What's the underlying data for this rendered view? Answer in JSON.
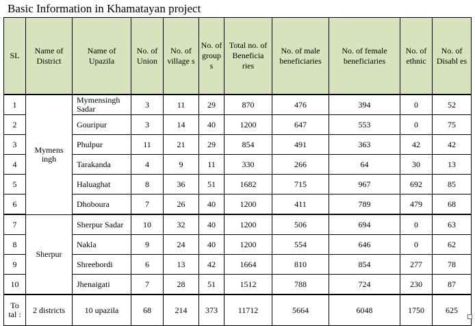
{
  "title": "Basic Information in Khamatayan project",
  "headers": [
    "SL",
    "Name of District",
    "Name of Upazila",
    "No. of Union",
    "No. of village s",
    "No. of group s",
    "Total no. of Beneficia ries",
    "No. of male beneficiaries",
    "No. of female beneficiaries",
    "No. of ethnic",
    "No. of Disabl es"
  ],
  "districts": [
    "Mymens ingh",
    "Sherpur"
  ],
  "rows": [
    {
      "sl": "1",
      "upazila": "Mymensingh Sadar",
      "union": "3",
      "villages": "11",
      "groups": "29",
      "total": "870",
      "male": "476",
      "female": "394",
      "ethnic": "0",
      "disabled": "52"
    },
    {
      "sl": "2",
      "upazila": "Gouripur",
      "union": "3",
      "villages": "14",
      "groups": "40",
      "total": "1200",
      "male": "647",
      "female": "553",
      "ethnic": "0",
      "disabled": "75"
    },
    {
      "sl": "3",
      "upazila": "Phulpur",
      "union": "11",
      "villages": "21",
      "groups": "29",
      "total": "854",
      "male": "491",
      "female": "363",
      "ethnic": "42",
      "disabled": "42"
    },
    {
      "sl": "4",
      "upazila": "Tarakanda",
      "union": "4",
      "villages": "9",
      "groups": "11",
      "total": "330",
      "male": "266",
      "female": "64",
      "ethnic": "30",
      "disabled": "13"
    },
    {
      "sl": "5",
      "upazila": "Haluaghat",
      "union": "8",
      "villages": "36",
      "groups": "51",
      "total": "1682",
      "male": "715",
      "female": "967",
      "ethnic": "692",
      "disabled": "85"
    },
    {
      "sl": "6",
      "upazila": "Dhoboura",
      "union": "7",
      "villages": "26",
      "groups": "40",
      "total": "1200",
      "male": "411",
      "female": "789",
      "ethnic": "479",
      "disabled": "68"
    },
    {
      "sl": "7",
      "upazila": "Sherpur Sadar",
      "union": "10",
      "villages": "32",
      "groups": "40",
      "total": "1200",
      "male": "506",
      "female": "694",
      "ethnic": "0",
      "disabled": "63"
    },
    {
      "sl": "8",
      "upazila": "Nakla",
      "union": "9",
      "villages": "24",
      "groups": "40",
      "total": "1200",
      "male": "554",
      "female": "646",
      "ethnic": "0",
      "disabled": "62"
    },
    {
      "sl": "9",
      "upazila": "Shreebordi",
      "union": "6",
      "villages": "13",
      "groups": "42",
      "total": "1664",
      "male": "810",
      "female": "854",
      "ethnic": "277",
      "disabled": "78"
    },
    {
      "sl": "10",
      "upazila": "Jhenaigati",
      "union": "7",
      "villages": "28",
      "groups": "51",
      "total": "1512",
      "male": "788",
      "female": "724",
      "ethnic": "230",
      "disabled": "87"
    }
  ],
  "total": {
    "sl": "To tal :",
    "district": "2 districts",
    "upazila": "10 upazila",
    "union": "68",
    "villages": "214",
    "groups": "373",
    "total": "11712",
    "male": "5664",
    "female": "6048",
    "ethnic": "1750",
    "disabled": "625"
  }
}
